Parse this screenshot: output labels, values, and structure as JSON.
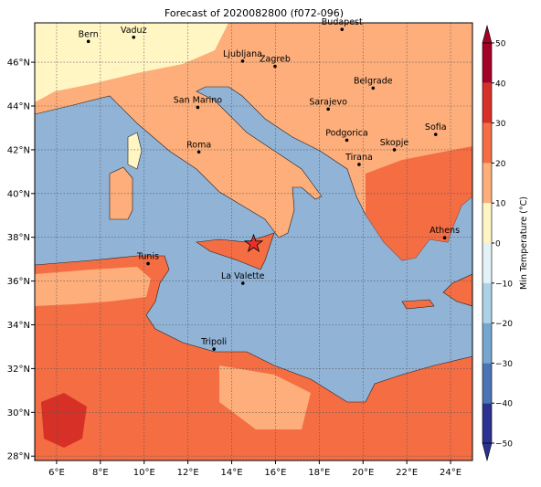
{
  "title": "Forecast of 2020082800 (f072-096)",
  "xaxis": {
    "lim": [
      5,
      25
    ],
    "ticks": [
      {
        "value": 6,
        "label": "6°E"
      },
      {
        "value": 8,
        "label": "8°E"
      },
      {
        "value": 10,
        "label": "10°E"
      },
      {
        "value": 12,
        "label": "12°E"
      },
      {
        "value": 14,
        "label": "14°E"
      },
      {
        "value": 16,
        "label": "16°E"
      },
      {
        "value": 18,
        "label": "18°E"
      },
      {
        "value": 20,
        "label": "20°E"
      },
      {
        "value": 22,
        "label": "22°E"
      },
      {
        "value": 24,
        "label": "24°E"
      }
    ]
  },
  "yaxis": {
    "lim": [
      27.8,
      47.8
    ],
    "ticks": [
      {
        "value": 28,
        "label": "28°N"
      },
      {
        "value": 30,
        "label": "30°N"
      },
      {
        "value": 32,
        "label": "32°N"
      },
      {
        "value": 34,
        "label": "34°N"
      },
      {
        "value": 36,
        "label": "36°N"
      },
      {
        "value": 38,
        "label": "38°N"
      },
      {
        "value": 40,
        "label": "40°N"
      },
      {
        "value": 42,
        "label": "42°N"
      },
      {
        "value": 44,
        "label": "44°N"
      },
      {
        "value": 46,
        "label": "46°N"
      }
    ]
  },
  "grid": true,
  "cities": [
    {
      "name": "Bern",
      "lon": 7.45,
      "lat": 46.95
    },
    {
      "name": "Vaduz",
      "lon": 9.52,
      "lat": 47.14
    },
    {
      "name": "Budapest",
      "lon": 19.04,
      "lat": 47.5
    },
    {
      "name": "Ljubljana",
      "lon": 14.5,
      "lat": 46.05
    },
    {
      "name": "Zagreb",
      "lon": 15.98,
      "lat": 45.81
    },
    {
      "name": "Belgrade",
      "lon": 20.46,
      "lat": 44.82
    },
    {
      "name": "San Marino",
      "lon": 12.45,
      "lat": 43.94
    },
    {
      "name": "Sarajevo",
      "lon": 18.41,
      "lat": 43.86
    },
    {
      "name": "Sofia",
      "lon": 23.32,
      "lat": 42.7
    },
    {
      "name": "Podgorica",
      "lon": 19.26,
      "lat": 42.44
    },
    {
      "name": "Skopje",
      "lon": 21.43,
      "lat": 42.0
    },
    {
      "name": "Roma",
      "lon": 12.5,
      "lat": 41.9
    },
    {
      "name": "Tirana",
      "lon": 19.82,
      "lat": 41.33
    },
    {
      "name": "Athens",
      "lon": 23.73,
      "lat": 37.98
    },
    {
      "name": "Tunis",
      "lon": 10.18,
      "lat": 36.8
    },
    {
      "name": "La Valette",
      "lon": 14.51,
      "lat": 35.9
    },
    {
      "name": "Tripoli",
      "lon": 13.19,
      "lat": 32.89
    }
  ],
  "marker": {
    "lon": 15.0,
    "lat": 37.7,
    "color": "#e8302a"
  },
  "colorbar": {
    "label": "Min Temperature (°C)",
    "lim": [
      -50,
      50
    ],
    "ticks": [
      {
        "value": -50,
        "label": "−50"
      },
      {
        "value": -40,
        "label": "−40"
      },
      {
        "value": -30,
        "label": "−30"
      },
      {
        "value": -20,
        "label": "−20"
      },
      {
        "value": -10,
        "label": "−10"
      },
      0,
      10,
      20,
      30,
      40,
      50
    ],
    "colors": [
      "#2b3190",
      "#4a74b4",
      "#75a6cf",
      "#abd2e6",
      "#e2f2f7",
      "#fff6c4",
      "#fdae7a",
      "#f46d43",
      "#d73027",
      "#a50026"
    ]
  }
}
